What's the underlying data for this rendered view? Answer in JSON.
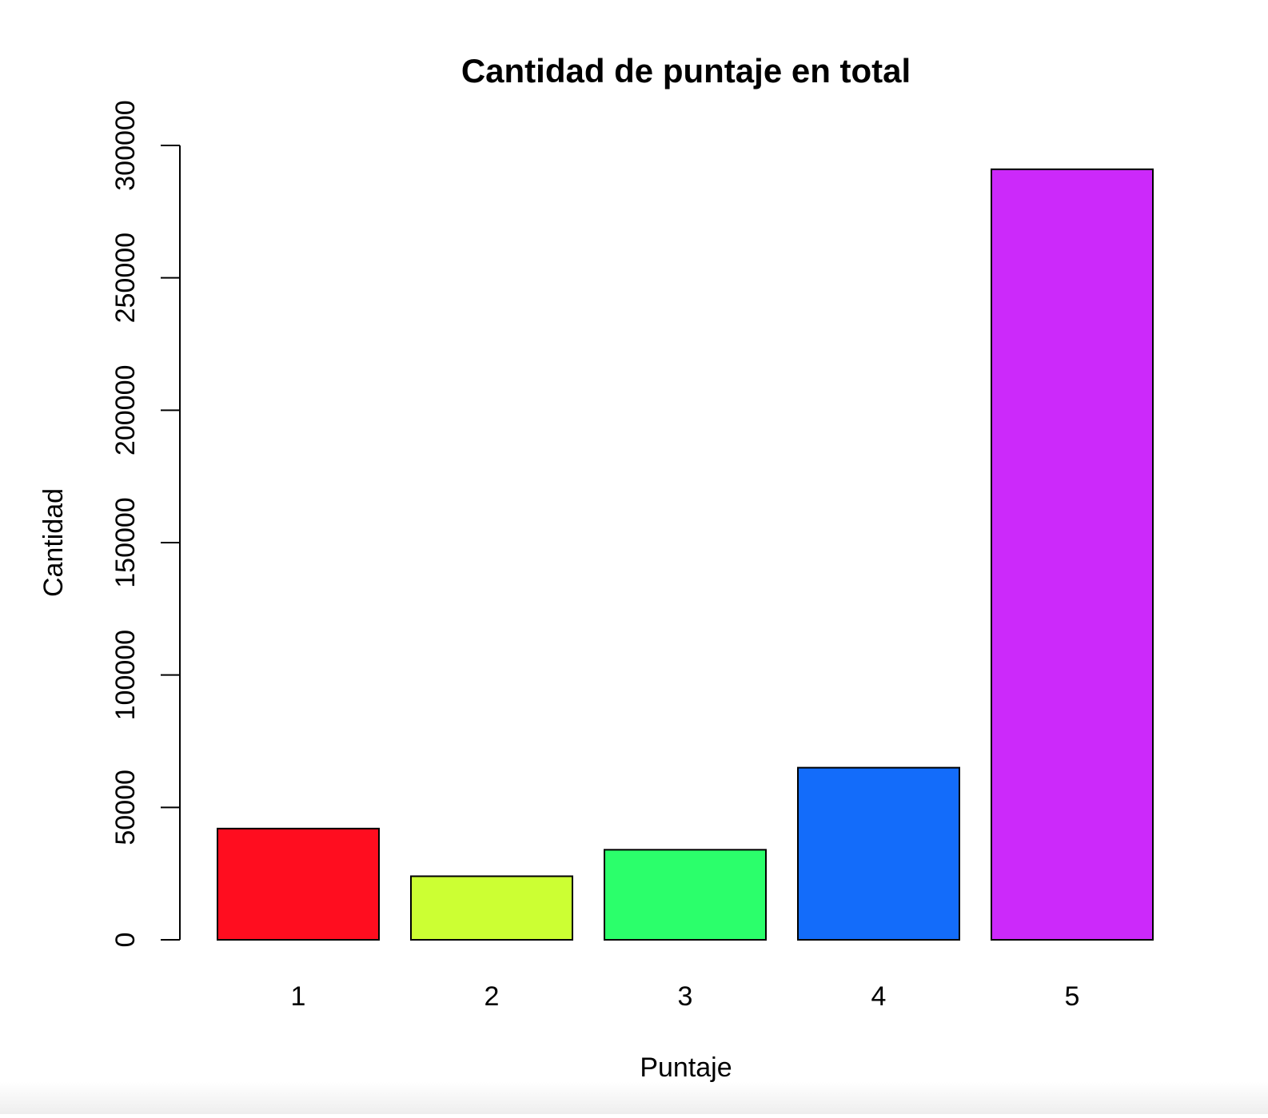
{
  "chart_data": {
    "type": "bar",
    "title": "Cantidad de puntaje en total",
    "xlabel": "Puntaje",
    "ylabel": "Cantidad",
    "categories": [
      "1",
      "2",
      "3",
      "4",
      "5"
    ],
    "values": [
      42000,
      24000,
      34000,
      65000,
      291000
    ],
    "colors": [
      "#ff0d1f",
      "#ccff33",
      "#2bff6b",
      "#136cfa",
      "#cc29fa"
    ],
    "yticks": [
      0,
      50000,
      100000,
      150000,
      200000,
      250000,
      300000
    ],
    "ytick_labels": [
      "0",
      "50000",
      "100000",
      "150000",
      "200000",
      "250000",
      "300000"
    ],
    "ylim": [
      0,
      300000
    ],
    "grid": false,
    "legend": "none"
  }
}
